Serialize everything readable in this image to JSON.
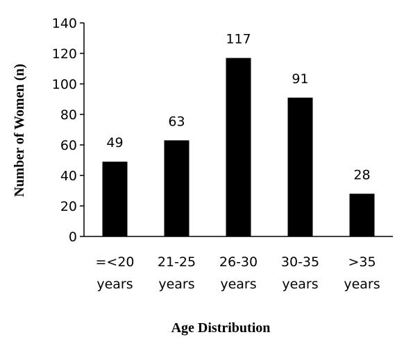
{
  "chart_data": {
    "type": "bar",
    "categories": [
      [
        "=<20",
        "years"
      ],
      [
        "21-25",
        "years"
      ],
      [
        "26-30",
        "years"
      ],
      [
        "30-35",
        "years"
      ],
      [
        ">35",
        "years"
      ]
    ],
    "values": [
      49,
      63,
      117,
      91,
      28
    ],
    "data_labels": [
      "49",
      "63",
      "117",
      "91",
      "28"
    ],
    "xlabel": "Age Distribution",
    "ylabel": "Number of Women (n)",
    "ylim": [
      0,
      140
    ],
    "yticks": [
      0,
      20,
      40,
      60,
      80,
      100,
      120,
      140
    ],
    "grid": false,
    "legend": "none",
    "bar_color": "#000000"
  }
}
